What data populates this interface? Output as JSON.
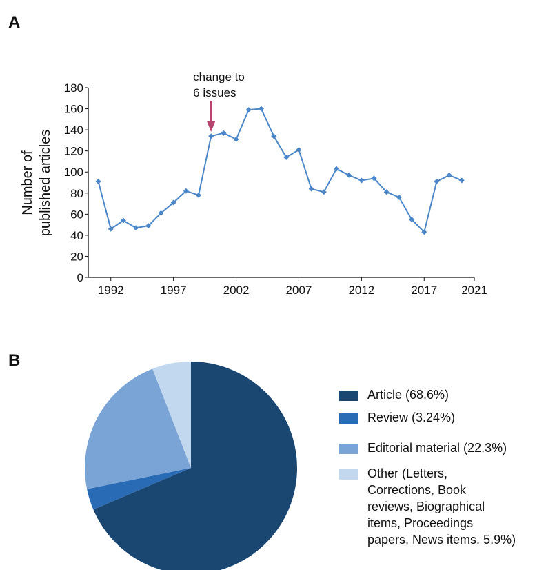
{
  "chart_data": [
    {
      "type": "line",
      "panel_label": "A",
      "ylabel": "Number of\npublished articles",
      "x": [
        1991,
        1992,
        1993,
        1994,
        1995,
        1996,
        1997,
        1998,
        1999,
        2000,
        2001,
        2002,
        2003,
        2004,
        2005,
        2006,
        2007,
        2008,
        2009,
        2010,
        2011,
        2012,
        2013,
        2014,
        2015,
        2016,
        2017,
        2018,
        2019,
        2020
      ],
      "series": [
        {
          "color": "#4a86c8",
          "values": [
            91,
            46,
            54,
            47,
            49,
            61,
            71,
            82,
            78,
            134,
            137,
            131,
            159,
            160,
            134,
            114,
            121,
            84,
            81,
            103,
            97,
            92,
            94,
            81,
            76,
            55,
            43,
            91,
            97,
            92
          ]
        }
      ],
      "xlim": [
        1990.2,
        2021
      ],
      "xticks": [
        1992,
        1997,
        2002,
        2007,
        2012,
        2017,
        2021
      ],
      "ylim": [
        0,
        180
      ],
      "yticks": [
        0,
        20,
        40,
        60,
        80,
        100,
        120,
        140,
        160,
        180
      ],
      "annotation": {
        "text": "change to\n6 issues",
        "x": 2000,
        "color": "#b5446e"
      }
    },
    {
      "type": "pie",
      "panel_label": "B",
      "categories": [
        "Article (68.6%)",
        "Review (3.24%)",
        "Editorial material (22.3%)",
        "Other (Letters,\nCorrections, Book\nreviews, Biographical\nitems, Proceedings\npapers, News items, 5.9%)"
      ],
      "values": [
        68.6,
        3.24,
        22.3,
        5.9
      ],
      "colors": [
        "#1a4672",
        "#2a6bb5",
        "#7ba4d6",
        "#c2d8ef"
      ]
    }
  ]
}
